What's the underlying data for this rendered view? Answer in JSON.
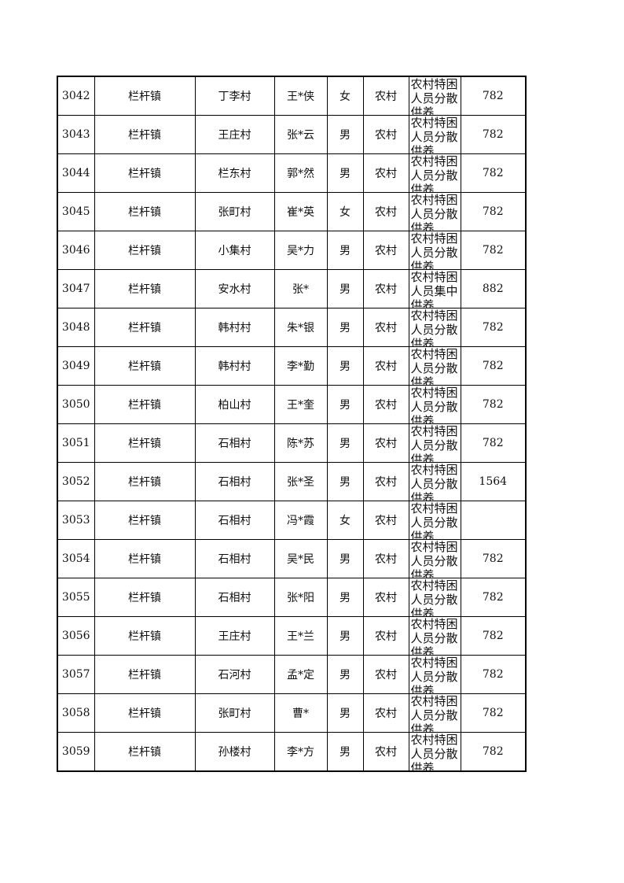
{
  "rows": [
    {
      "id": "3042",
      "town": "栏杆镇",
      "village": "丁李村",
      "name": "王*侠",
      "gender": "女",
      "area": "农村",
      "type": "农村特困人员分散供养",
      "amount": "782"
    },
    {
      "id": "3043",
      "town": "栏杆镇",
      "village": "王庄村",
      "name": "张*云",
      "gender": "男",
      "area": "农村",
      "type": "农村特困人员分散供养",
      "amount": "782"
    },
    {
      "id": "3044",
      "town": "栏杆镇",
      "village": "栏东村",
      "name": "郭*然",
      "gender": "男",
      "area": "农村",
      "type": "农村特困人员分散供养",
      "amount": "782"
    },
    {
      "id": "3045",
      "town": "栏杆镇",
      "village": "张町村",
      "name": "崔*英",
      "gender": "女",
      "area": "农村",
      "type": "农村特困人员分散供养",
      "amount": "782"
    },
    {
      "id": "3046",
      "town": "栏杆镇",
      "village": "小集村",
      "name": "吴*力",
      "gender": "男",
      "area": "农村",
      "type": "农村特困人员分散供养",
      "amount": "782"
    },
    {
      "id": "3047",
      "town": "栏杆镇",
      "village": "安水村",
      "name": "张*",
      "gender": "男",
      "area": "农村",
      "type": "农村特困人员集中供养",
      "amount": "882"
    },
    {
      "id": "3048",
      "town": "栏杆镇",
      "village": "韩村村",
      "name": "朱*银",
      "gender": "男",
      "area": "农村",
      "type": "农村特困人员分散供养",
      "amount": "782"
    },
    {
      "id": "3049",
      "town": "栏杆镇",
      "village": "韩村村",
      "name": "李*勤",
      "gender": "男",
      "area": "农村",
      "type": "农村特困人员分散供养",
      "amount": "782"
    },
    {
      "id": "3050",
      "town": "栏杆镇",
      "village": "柏山村",
      "name": "王*奎",
      "gender": "男",
      "area": "农村",
      "type": "农村特困人员分散供养",
      "amount": "782"
    },
    {
      "id": "3051",
      "town": "栏杆镇",
      "village": "石相村",
      "name": "陈*苏",
      "gender": "男",
      "area": "农村",
      "type": "农村特困人员分散供养",
      "amount": "782"
    },
    {
      "id": "3052",
      "town": "栏杆镇",
      "village": "石相村",
      "name": "张*圣",
      "gender": "男",
      "area": "农村",
      "type": "农村特困人员分散供养",
      "amount": "1564"
    },
    {
      "id": "3053",
      "town": "栏杆镇",
      "village": "石相村",
      "name": "冯*霞",
      "gender": "女",
      "area": "农村",
      "type": "农村特困人员分散供养",
      "amount": ""
    },
    {
      "id": "3054",
      "town": "栏杆镇",
      "village": "石相村",
      "name": "吴*民",
      "gender": "男",
      "area": "农村",
      "type": "农村特困人员分散供养",
      "amount": "782"
    },
    {
      "id": "3055",
      "town": "栏杆镇",
      "village": "石相村",
      "name": "张*阳",
      "gender": "男",
      "area": "农村",
      "type": "农村特困人员分散供养",
      "amount": "782"
    },
    {
      "id": "3056",
      "town": "栏杆镇",
      "village": "王庄村",
      "name": "王*兰",
      "gender": "男",
      "area": "农村",
      "type": "农村特困人员分散供养",
      "amount": "782"
    },
    {
      "id": "3057",
      "town": "栏杆镇",
      "village": "石河村",
      "name": "孟*定",
      "gender": "男",
      "area": "农村",
      "type": "农村特困人员分散供养",
      "amount": "782"
    },
    {
      "id": "3058",
      "town": "栏杆镇",
      "village": "张町村",
      "name": "曹*",
      "gender": "男",
      "area": "农村",
      "type": "农村特困人员分散供养",
      "amount": "782"
    },
    {
      "id": "3059",
      "town": "栏杆镇",
      "village": "孙楼村",
      "name": "李*方",
      "gender": "男",
      "area": "农村",
      "type": "农村特困人员分散供养",
      "amount": "782"
    }
  ]
}
